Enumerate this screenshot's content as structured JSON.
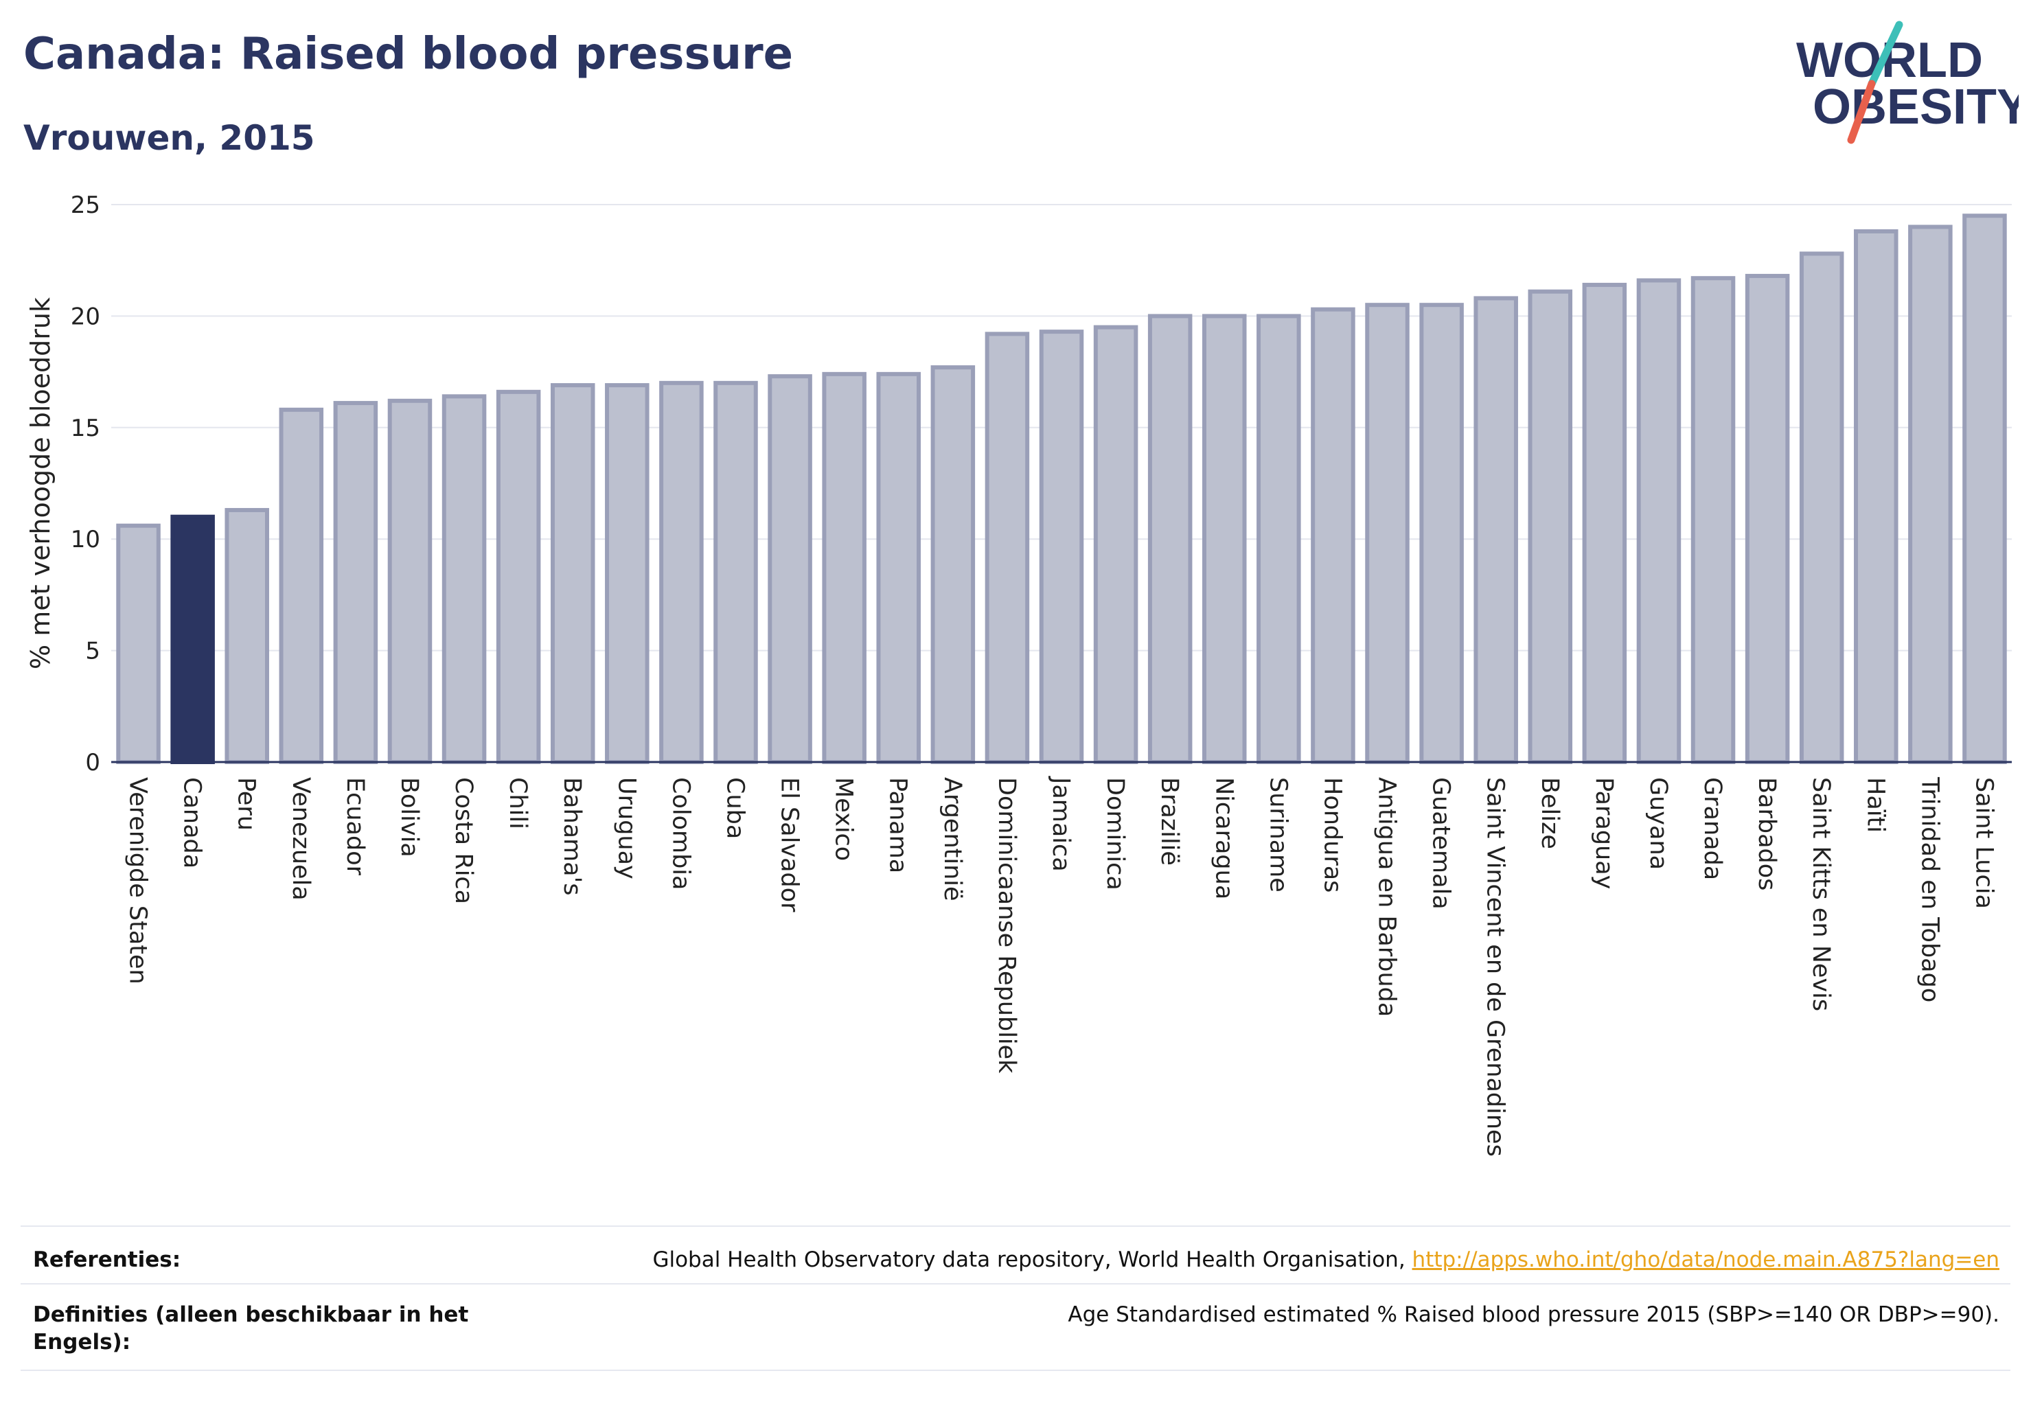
{
  "header": {
    "title": "Canada: Raised blood pressure",
    "subtitle": "Vrouwen, 2015"
  },
  "logo": {
    "line1": "WORLD",
    "line2": "OBESITY",
    "text_color": "#2b3561",
    "slash_top_color": "#3dbfb8",
    "slash_bottom_color": "#e8604c"
  },
  "chart_data": {
    "type": "bar",
    "title": "Canada: Raised blood pressure",
    "subtitle": "Vrouwen, 2015",
    "xlabel": "",
    "ylabel": "% met verhoogde bloeddruk",
    "ylim": [
      0,
      25
    ],
    "yticks": [
      0,
      5,
      10,
      15,
      20,
      25
    ],
    "grid": true,
    "highlight": "Canada",
    "colors": {
      "default": "#bcc0cf",
      "default_border": "#9a9fb8",
      "highlight": "#2b3561"
    },
    "categories": [
      "Verenigde Staten",
      "Canada",
      "Peru",
      "Venezuela",
      "Ecuador",
      "Bolivia",
      "Costa Rica",
      "Chili",
      "Bahama's",
      "Uruguay",
      "Colombia",
      "Cuba",
      "El Salvador",
      "Mexico",
      "Panama",
      "Argentinië",
      "Dominicaanse Republiek",
      "Jamaica",
      "Dominica",
      "Brazilië",
      "Nicaragua",
      "Suriname",
      "Honduras",
      "Antigua en Barbuda",
      "Guatemala",
      "Saint Vincent en de Grenadines",
      "Belize",
      "Paraguay",
      "Guyana",
      "Granada",
      "Barbados",
      "Saint Kitts en Nevis",
      "Haïti",
      "Trinidad en Tobago",
      "Saint Lucia"
    ],
    "values": [
      10.6,
      11.0,
      11.3,
      15.8,
      16.1,
      16.2,
      16.4,
      16.6,
      16.9,
      16.9,
      17.0,
      17.0,
      17.3,
      17.4,
      17.4,
      17.7,
      19.2,
      19.3,
      19.5,
      20.0,
      20.0,
      20.0,
      20.3,
      20.5,
      20.5,
      20.8,
      21.1,
      21.4,
      21.6,
      21.7,
      21.8,
      22.8,
      23.8,
      24.0,
      24.5
    ]
  },
  "footer": {
    "references_label": "Referenties:",
    "references_text": "Global Health Observatory data repository, World Health Organisation, ",
    "references_link": "http://apps.who.int/gho/data/node.main.A875?lang=en",
    "definitions_label": "Definities (alleen beschikbaar in het Engels):",
    "definitions_text": "Age Standardised estimated % Raised blood pressure 2015 (SBP>=140 OR DBP>=90)."
  }
}
